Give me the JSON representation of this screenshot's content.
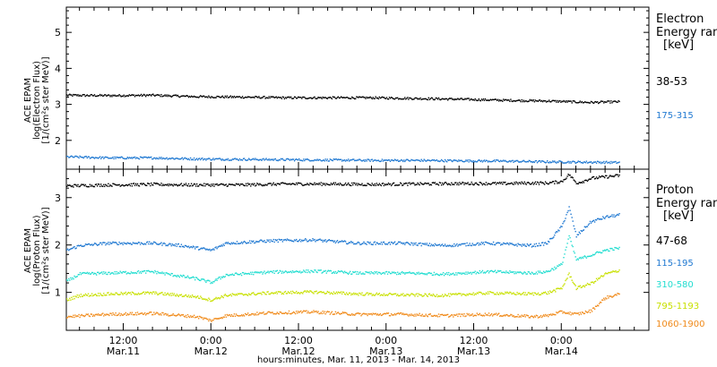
{
  "colors": {
    "black": "#000000",
    "blue": "#1f78d1",
    "cyan": "#22ddd0",
    "yellow": "#c8e000",
    "orange": "#f08a1a"
  },
  "top_panel": {
    "ylabel_lines": [
      "ACE EPAM",
      "log(Electron Flux)",
      "[1/(cm²s ster MeV)]"
    ],
    "legend_title": [
      "Electron",
      "Energy ranges",
      "[keV]"
    ]
  },
  "bottom_panel": {
    "ylabel_lines": [
      "ACE EPAM",
      "log(Proton Flux)",
      "[1/(cm²s ster MeV)]"
    ],
    "legend_title": [
      "Proton",
      "Energy ranges",
      "[keV]"
    ]
  },
  "xaxis": {
    "tick_labels": [
      {
        "time": "12:00",
        "date": "Mar.11"
      },
      {
        "time": "0:00",
        "date": "Mar.12"
      },
      {
        "time": "12:00",
        "date": "Mar.12"
      },
      {
        "time": "0:00",
        "date": "Mar.13"
      },
      {
        "time": "12:00",
        "date": "Mar.13"
      },
      {
        "time": "0:00",
        "date": "Mar.14"
      }
    ],
    "title": "hours:minutes, Mar. 11, 2013 - Mar. 14, 2013"
  },
  "chart_data": [
    {
      "type": "scatter",
      "title": "",
      "ylabel": "ACE EPAM log(Electron Flux) [1/(cm²s ster MeV)]",
      "xlabel": "",
      "x_range_hours_since_2013-03-11T00:00": [
        4.2,
        84
      ],
      "ylim": [
        1.2,
        5.7
      ],
      "yticks": [
        2,
        3,
        4,
        5
      ],
      "legend_placement": "right",
      "series": [
        {
          "name": "38-53",
          "color": "#000000",
          "x": [
            4.2,
            10,
            16,
            22,
            28,
            34,
            40,
            46,
            52,
            58,
            64,
            70,
            76,
            80
          ],
          "values": [
            3.27,
            3.26,
            3.27,
            3.23,
            3.22,
            3.2,
            3.2,
            3.2,
            3.18,
            3.16,
            3.13,
            3.11,
            3.07,
            3.09
          ]
        },
        {
          "name": "175-315",
          "color": "#1f78d1",
          "x": [
            4.2,
            10,
            16,
            22,
            28,
            34,
            40,
            46,
            52,
            58,
            64,
            70,
            76,
            80
          ],
          "values": [
            1.56,
            1.53,
            1.53,
            1.5,
            1.49,
            1.48,
            1.47,
            1.46,
            1.46,
            1.45,
            1.44,
            1.42,
            1.41,
            1.4
          ]
        }
      ]
    },
    {
      "type": "scatter",
      "title": "",
      "ylabel": "ACE EPAM log(Proton Flux) [1/(cm²s ster MeV)]",
      "xlabel": "hours:minutes, Mar. 11, 2013 - Mar. 14, 2013",
      "x_range_hours_since_2013-03-11T00:00": [
        4.2,
        84
      ],
      "ylim": [
        0.2,
        3.6
      ],
      "yticks": [
        1,
        2,
        3
      ],
      "legend_placement": "right",
      "series": [
        {
          "name": "47-68",
          "color": "#000000",
          "x": [
            4.2,
            10,
            16,
            22,
            28,
            34,
            40,
            46,
            52,
            58,
            64,
            68,
            70,
            72,
            73,
            74,
            75,
            76,
            78,
            80
          ],
          "values": [
            3.26,
            3.28,
            3.29,
            3.28,
            3.28,
            3.3,
            3.3,
            3.29,
            3.3,
            3.31,
            3.31,
            3.32,
            3.32,
            3.35,
            3.5,
            3.32,
            3.36,
            3.42,
            3.45,
            3.48
          ]
        },
        {
          "name": "115-195",
          "color": "#1f78d1",
          "x": [
            4.2,
            6,
            10,
            16,
            20,
            24,
            26,
            32,
            38,
            44,
            50,
            56,
            62,
            68,
            70,
            72,
            73,
            74,
            76,
            78,
            80
          ],
          "values": [
            1.9,
            2.0,
            2.05,
            2.05,
            2.0,
            1.9,
            2.05,
            2.1,
            2.12,
            2.05,
            2.05,
            2.0,
            2.05,
            2.0,
            2.05,
            2.4,
            2.8,
            2.2,
            2.5,
            2.6,
            2.65
          ]
        },
        {
          "name": "310-580",
          "color": "#22ddd0",
          "x": [
            4.2,
            6,
            10,
            16,
            22,
            24,
            26,
            32,
            38,
            44,
            50,
            56,
            62,
            68,
            70,
            72,
            73,
            74,
            76,
            78,
            80
          ],
          "values": [
            1.25,
            1.4,
            1.42,
            1.45,
            1.3,
            1.22,
            1.38,
            1.44,
            1.46,
            1.42,
            1.42,
            1.4,
            1.45,
            1.42,
            1.45,
            1.6,
            2.2,
            1.7,
            1.8,
            1.9,
            1.95
          ]
        },
        {
          "name": "795-1193",
          "color": "#c8e000",
          "x": [
            4.2,
            6,
            10,
            16,
            22,
            24,
            26,
            32,
            38,
            44,
            50,
            56,
            62,
            68,
            70,
            72,
            73,
            74,
            76,
            78,
            80
          ],
          "values": [
            0.85,
            0.95,
            0.98,
            1.0,
            0.92,
            0.85,
            0.95,
            1.0,
            1.02,
            0.98,
            0.96,
            0.95,
            1.0,
            0.98,
            1.0,
            1.1,
            1.4,
            1.1,
            1.2,
            1.4,
            1.48
          ]
        },
        {
          "name": "1060-1900",
          "color": "#f08a1a",
          "x": [
            4.2,
            10,
            16,
            22,
            24,
            26,
            32,
            38,
            44,
            50,
            56,
            62,
            68,
            70,
            72,
            74,
            76,
            78,
            80
          ],
          "values": [
            0.5,
            0.55,
            0.57,
            0.5,
            0.42,
            0.52,
            0.58,
            0.6,
            0.55,
            0.55,
            0.52,
            0.55,
            0.5,
            0.52,
            0.6,
            0.55,
            0.62,
            0.9,
            0.98
          ]
        }
      ]
    }
  ]
}
